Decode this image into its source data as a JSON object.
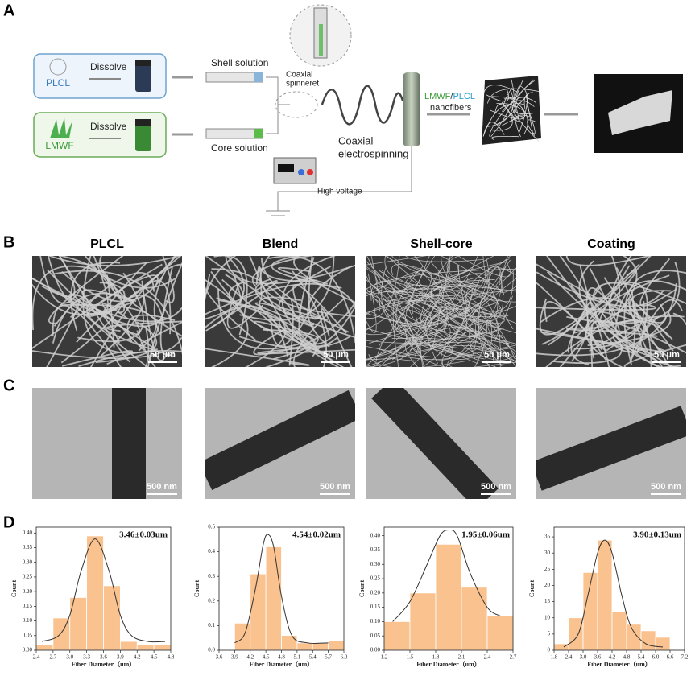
{
  "panel_labels": [
    "A",
    "B",
    "C",
    "D"
  ],
  "schematic": {
    "plcl": "PLCL",
    "dissolve_top": "Dissolve",
    "lmwf": "LMWF",
    "dissolve_bottom": "Dissolve",
    "shell_solution": "Shell solution",
    "core_solution": "Core solution",
    "coaxial_spinneret": [
      "Coaxial",
      "spinneret"
    ],
    "coaxial_electrospinning": [
      "Coaxial",
      "electrospinning"
    ],
    "nanofibers": {
      "lmwf": "LMWF",
      "slash": "/",
      "plcl": "PLCL",
      "rest": "nanofibers"
    },
    "high_voltage": "High voltage"
  },
  "sem": {
    "titles": [
      "PLCL",
      "Blend",
      "Shell-core",
      "Coating"
    ],
    "scale_bars": [
      "50 μm",
      "50 μm",
      "50 μm",
      "50 μm"
    ]
  },
  "tem": {
    "scale_bars": [
      "500 nm",
      "500 nm",
      "500 nm",
      "500 nm"
    ]
  },
  "chart_data": [
    {
      "type": "histogram",
      "annotation": "3.46±0.03um",
      "x_label": "Fiber Diameter（um）",
      "y_label": "Count",
      "color": "#f9c28f",
      "line_color": "#333333",
      "bins": [
        2.4,
        2.7,
        3.0,
        3.3,
        3.6,
        3.9,
        4.2,
        4.5,
        4.8
      ],
      "values": [
        0.02,
        0.11,
        0.18,
        0.39,
        0.22,
        0.03,
        0.02,
        0.02
      ],
      "curve": {
        "x": [
          2.5,
          2.8,
          3.0,
          3.2,
          3.45,
          3.7,
          3.9,
          4.1,
          4.4,
          4.7
        ],
        "y": [
          0.03,
          0.05,
          0.12,
          0.27,
          0.38,
          0.27,
          0.12,
          0.05,
          0.03,
          0.03
        ]
      },
      "xlim": [
        2.4,
        4.8
      ],
      "ylim": [
        0,
        0.42
      ],
      "xticks": [
        2.4,
        2.7,
        {
          "value": 3.0,
          "label": "3.0"
        },
        3.3,
        3.6,
        3.9,
        4.2,
        4.5,
        4.8
      ],
      "yticks": [
        {
          "value": 0,
          "label": "0.00"
        },
        {
          "value": 0.05,
          "label": "0.05"
        },
        {
          "value": 0.1,
          "label": "0.10"
        },
        {
          "value": 0.15,
          "label": "0.15"
        },
        {
          "value": 0.2,
          "label": "0.20"
        },
        {
          "value": 0.25,
          "label": "0.25"
        },
        {
          "value": 0.3,
          "label": "0.30"
        },
        {
          "value": 0.35,
          "label": "0.35"
        },
        {
          "value": 0.4,
          "label": "0.40"
        }
      ]
    },
    {
      "type": "histogram",
      "annotation": "4.54±0.02um",
      "x_label": "Fiber Diameter（um）",
      "y_label": "Count",
      "color": "#f9c28f",
      "line_color": "#333333",
      "bins": [
        3.9,
        4.2,
        4.5,
        4.8,
        5.1,
        5.4,
        5.7,
        6.0
      ],
      "values": [
        0.11,
        0.31,
        0.42,
        0.06,
        0.03,
        0.03,
        0.04
      ],
      "curve": {
        "x": [
          3.9,
          4.1,
          4.3,
          4.45,
          4.54,
          4.65,
          4.8,
          5.0,
          5.3,
          5.7
        ],
        "y": [
          0.03,
          0.07,
          0.25,
          0.43,
          0.47,
          0.42,
          0.22,
          0.06,
          0.03,
          0.03
        ]
      },
      "xlim": [
        3.6,
        6.0
      ],
      "ylim": [
        0,
        0.5
      ],
      "xticks": [
        3.6,
        3.9,
        4.2,
        4.5,
        4.8,
        5.1,
        5.4,
        5.7,
        {
          "value": 6.0,
          "label": "6.0"
        }
      ],
      "yticks": [
        {
          "value": 0,
          "label": "0.0"
        },
        0.1,
        0.2,
        0.3,
        0.4,
        0.5
      ]
    },
    {
      "type": "histogram",
      "annotation": "1.95±0.06um",
      "x_label": "Fiber Diameter（um）",
      "y_label": "Count",
      "color": "#f9c28f",
      "line_color": "#333333",
      "bins": [
        1.2,
        1.5,
        1.8,
        2.1,
        2.4,
        2.7
      ],
      "values": [
        0.1,
        0.2,
        0.37,
        0.22,
        0.12
      ],
      "curve": {
        "x": [
          1.3,
          1.5,
          1.7,
          1.85,
          1.95,
          2.05,
          2.2,
          2.4,
          2.55
        ],
        "y": [
          0.1,
          0.17,
          0.3,
          0.4,
          0.42,
          0.4,
          0.27,
          0.15,
          0.12
        ]
      },
      "xlim": [
        1.2,
        2.7
      ],
      "ylim": [
        0,
        0.43
      ],
      "xticks": [
        1.2,
        1.5,
        1.8,
        2.1,
        2.4,
        2.7
      ],
      "yticks": [
        {
          "value": 0,
          "label": "0.00"
        },
        {
          "value": 0.05,
          "label": "0.05"
        },
        {
          "value": 0.1,
          "label": "0.10"
        },
        {
          "value": 0.15,
          "label": "0.15"
        },
        {
          "value": 0.2,
          "label": "0.20"
        },
        {
          "value": 0.25,
          "label": "0.25"
        },
        {
          "value": 0.3,
          "label": "0.30"
        },
        {
          "value": 0.35,
          "label": "0.35"
        },
        {
          "value": 0.4,
          "label": "0.40"
        }
      ]
    },
    {
      "type": "histogram",
      "annotation": "3.90±0.13um",
      "x_label": "Fiber Diameter（um）",
      "y_label": "Count",
      "color": "#f9c28f",
      "line_color": "#333333",
      "bins": [
        1.8,
        2.4,
        3.0,
        3.6,
        4.2,
        4.8,
        5.4,
        6.0,
        6.6
      ],
      "values": [
        2,
        10,
        24,
        34,
        12,
        8,
        6,
        4
      ],
      "curve": {
        "x": [
          2.2,
          2.8,
          3.2,
          3.6,
          3.9,
          4.2,
          4.6,
          5.0,
          5.6,
          6.3
        ],
        "y": [
          1,
          5,
          17,
          30,
          34,
          30,
          17,
          7,
          2,
          1
        ]
      },
      "xlim": [
        1.8,
        7.2
      ],
      "ylim": [
        0,
        38
      ],
      "xticks": [
        1.8,
        2.4,
        {
          "value": 3.0,
          "label": "3.0"
        },
        3.6,
        4.2,
        4.8,
        5.4,
        {
          "value": 6.0,
          "label": "6.0"
        },
        6.6,
        7.2
      ],
      "yticks": [
        0,
        5,
        10,
        15,
        20,
        25,
        30,
        35
      ]
    }
  ]
}
